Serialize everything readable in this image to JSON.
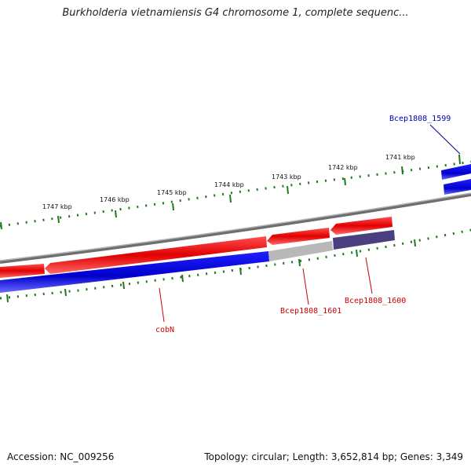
{
  "title": "Burkholderia vietnamiensis G4 chromosome 1, complete sequenc...",
  "footer": {
    "accession": "Accession: NC_009256",
    "summary": "Topology: circular; Length: 3,652,814 bp; Genes: 3,349"
  },
  "scale_labels": [
    "1741 kbp",
    "1742 kbp",
    "1743 kbp",
    "1744 kbp",
    "1745 kbp",
    "1746 kbp",
    "1747 kbp"
  ],
  "genes": [
    {
      "name": "Bcep1808_1599",
      "color": "#0000aa"
    },
    {
      "name": "Bcep1808_1600",
      "color": "#cc0000"
    },
    {
      "name": "Bcep1808_1601",
      "color": "#cc0000"
    },
    {
      "name": "cobN",
      "color": "#cc0000"
    }
  ],
  "colors": {
    "forward_strand": "#e00000",
    "reverse_strand": "#0000dd",
    "backbone": "#808080",
    "tick": "#1f7a1f",
    "grey_feature": "#b0b0b0",
    "dark_feature": "#4a4080"
  }
}
